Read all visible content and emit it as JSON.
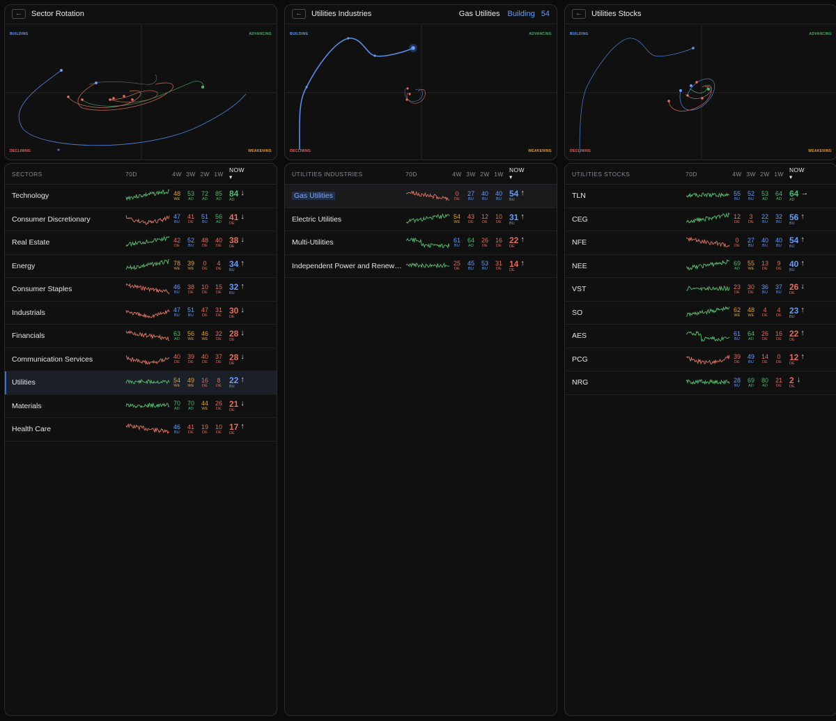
{
  "charts": [
    {
      "title": "Sector Rotation",
      "back": "←",
      "quadrants": {
        "bu": "BUILDING",
        "ad": "ADVANCING",
        "de": "DECLINING",
        "we": "WEAKENING"
      }
    },
    {
      "title": "Utilities Industries",
      "back": "←",
      "selected_name": "Gas Utilities",
      "selected_state": "Building",
      "selected_value": "54",
      "quadrants": {
        "bu": "BUILDING",
        "ad": "ADVANCING",
        "de": "DECLINING",
        "we": "WEAKENING"
      }
    },
    {
      "title": "Utilities Stocks",
      "back": "←",
      "quadrants": {
        "bu": "BUILDING",
        "ad": "ADVANCING",
        "de": "DECLINING",
        "we": "WEAKENING"
      }
    }
  ],
  "tables": [
    {
      "header": {
        "name": "SECTORS",
        "spark": "70D",
        "w4": "4W",
        "w3": "3W",
        "w2": "2W",
        "w1": "1W",
        "now": "NOW ▾"
      },
      "selected": 8,
      "rows": [
        {
          "name": "Technology",
          "w": [
            [
              48,
              "WE"
            ],
            [
              53,
              "AD"
            ],
            [
              72,
              "AD"
            ],
            [
              85,
              "AD"
            ]
          ],
          "now": [
            84,
            "AD"
          ],
          "arrow": "↓",
          "trend": "up"
        },
        {
          "name": "Consumer Discretionary",
          "w": [
            [
              47,
              "BU"
            ],
            [
              41,
              "DE"
            ],
            [
              51,
              "BU"
            ],
            [
              56,
              "AD"
            ]
          ],
          "now": [
            41,
            "DE"
          ],
          "arrow": "↓",
          "trend": "dip"
        },
        {
          "name": "Real Estate",
          "w": [
            [
              42,
              "DE"
            ],
            [
              52,
              "BU"
            ],
            [
              48,
              "DE"
            ],
            [
              40,
              "DE"
            ]
          ],
          "now": [
            38,
            "DE"
          ],
          "arrow": "↓",
          "trend": "up"
        },
        {
          "name": "Energy",
          "w": [
            [
              78,
              "WE"
            ],
            [
              39,
              "WE"
            ],
            [
              0,
              "DE"
            ],
            [
              4,
              "DE"
            ]
          ],
          "now": [
            34,
            "BU"
          ],
          "arrow": "↑",
          "trend": "up"
        },
        {
          "name": "Consumer Staples",
          "w": [
            [
              46,
              "BU"
            ],
            [
              38,
              "DE"
            ],
            [
              10,
              "DE"
            ],
            [
              15,
              "DE"
            ]
          ],
          "now": [
            32,
            "BU"
          ],
          "arrow": "↑",
          "trend": "down"
        },
        {
          "name": "Industrials",
          "w": [
            [
              47,
              "BU"
            ],
            [
              51,
              "BU"
            ],
            [
              47,
              "DE"
            ],
            [
              31,
              "DE"
            ]
          ],
          "now": [
            30,
            "DE"
          ],
          "arrow": "↓",
          "trend": "dip"
        },
        {
          "name": "Financials",
          "w": [
            [
              63,
              "AD"
            ],
            [
              56,
              "WE"
            ],
            [
              46,
              "WE"
            ],
            [
              32,
              "DE"
            ]
          ],
          "now": [
            28,
            "DE"
          ],
          "arrow": "↓",
          "trend": "down"
        },
        {
          "name": "Communication Services",
          "w": [
            [
              40,
              "DE"
            ],
            [
              39,
              "DE"
            ],
            [
              40,
              "DE"
            ],
            [
              37,
              "DE"
            ]
          ],
          "now": [
            28,
            "DE"
          ],
          "arrow": "↓",
          "trend": "dip"
        },
        {
          "name": "Utilities",
          "w": [
            [
              54,
              "WE"
            ],
            [
              49,
              "WE"
            ],
            [
              16,
              "DE"
            ],
            [
              8,
              "DE"
            ]
          ],
          "now": [
            22,
            "BU"
          ],
          "arrow": "↑",
          "trend": "flat"
        },
        {
          "name": "Materials",
          "w": [
            [
              70,
              "AD"
            ],
            [
              70,
              "AD"
            ],
            [
              44,
              "WE"
            ],
            [
              26,
              "DE"
            ]
          ],
          "now": [
            21,
            "DE"
          ],
          "arrow": "↓",
          "trend": "flat"
        },
        {
          "name": "Health Care",
          "w": [
            [
              46,
              "BU"
            ],
            [
              41,
              "DE"
            ],
            [
              19,
              "DE"
            ],
            [
              10,
              "DE"
            ]
          ],
          "now": [
            17,
            "DE"
          ],
          "arrow": "↑",
          "trend": "down"
        }
      ]
    },
    {
      "header": {
        "name": "UTILITIES INDUSTRIES",
        "spark": "70D",
        "w4": "4W",
        "w3": "3W",
        "w2": "2W",
        "w1": "1W",
        "now": "NOW ▾"
      },
      "highlight": 0,
      "rows": [
        {
          "name": "Gas Utilities",
          "w": [
            [
              0,
              "DE"
            ],
            [
              27,
              "BU"
            ],
            [
              40,
              "BU"
            ],
            [
              40,
              "BU"
            ]
          ],
          "now": [
            54,
            "BU"
          ],
          "arrow": "↑",
          "trend": "down"
        },
        {
          "name": "Electric Utilities",
          "w": [
            [
              54,
              "WE"
            ],
            [
              43,
              "DE"
            ],
            [
              12,
              "DE"
            ],
            [
              10,
              "DE"
            ]
          ],
          "now": [
            31,
            "BU"
          ],
          "arrow": "↑",
          "trend": "up"
        },
        {
          "name": "Multi-Utilities",
          "w": [
            [
              61,
              "BU"
            ],
            [
              64,
              "AD"
            ],
            [
              26,
              "DE"
            ],
            [
              16,
              "DE"
            ]
          ],
          "now": [
            22,
            "DE"
          ],
          "arrow": "↑",
          "trend": "step"
        },
        {
          "name": "Independent Power and Renewable Electricity Producers",
          "w": [
            [
              25,
              "DE"
            ],
            [
              45,
              "BU"
            ],
            [
              53,
              "BU"
            ],
            [
              31,
              "DE"
            ]
          ],
          "now": [
            14,
            "DE"
          ],
          "arrow": "↑",
          "trend": "flat"
        }
      ]
    },
    {
      "header": {
        "name": "UTILITIES STOCKS",
        "spark": "70D",
        "w4": "4W",
        "w3": "3W",
        "w2": "2W",
        "w1": "1W",
        "now": "NOW ▾"
      },
      "rows": [
        {
          "name": "TLN",
          "w": [
            [
              55,
              "BU"
            ],
            [
              52,
              "BU"
            ],
            [
              53,
              "AD"
            ],
            [
              64,
              "AD"
            ]
          ],
          "now": [
            64,
            "AD"
          ],
          "arrow": "→",
          "trend": "flat"
        },
        {
          "name": "CEG",
          "w": [
            [
              12,
              "DE"
            ],
            [
              3,
              "DE"
            ],
            [
              22,
              "BU"
            ],
            [
              32,
              "BU"
            ]
          ],
          "now": [
            56,
            "BU"
          ],
          "arrow": "↑",
          "trend": "up"
        },
        {
          "name": "NFE",
          "w": [
            [
              0,
              "DE"
            ],
            [
              27,
              "BU"
            ],
            [
              40,
              "BU"
            ],
            [
              40,
              "BU"
            ]
          ],
          "now": [
            54,
            "BU"
          ],
          "arrow": "↑",
          "trend": "down"
        },
        {
          "name": "NEE",
          "w": [
            [
              69,
              "AD"
            ],
            [
              55,
              "WE"
            ],
            [
              13,
              "DE"
            ],
            [
              9,
              "DE"
            ]
          ],
          "now": [
            40,
            "BU"
          ],
          "arrow": "↑",
          "trend": "up"
        },
        {
          "name": "VST",
          "w": [
            [
              23,
              "DE"
            ],
            [
              30,
              "DE"
            ],
            [
              36,
              "BU"
            ],
            [
              37,
              "BU"
            ]
          ],
          "now": [
            26,
            "DE"
          ],
          "arrow": "↓",
          "trend": "flat"
        },
        {
          "name": "SO",
          "w": [
            [
              62,
              "WE"
            ],
            [
              48,
              "WE"
            ],
            [
              4,
              "DE"
            ],
            [
              4,
              "DE"
            ]
          ],
          "now": [
            23,
            "BU"
          ],
          "arrow": "↑",
          "trend": "up"
        },
        {
          "name": "AES",
          "w": [
            [
              61,
              "BU"
            ],
            [
              64,
              "AD"
            ],
            [
              26,
              "DE"
            ],
            [
              16,
              "DE"
            ]
          ],
          "now": [
            22,
            "DE"
          ],
          "arrow": "↑",
          "trend": "step"
        },
        {
          "name": "PCG",
          "w": [
            [
              39,
              "DE"
            ],
            [
              49,
              "BU"
            ],
            [
              14,
              "DE"
            ],
            [
              0,
              "DE"
            ]
          ],
          "now": [
            12,
            "DE"
          ],
          "arrow": "↑",
          "trend": "dip"
        },
        {
          "name": "NRG",
          "w": [
            [
              28,
              "BU"
            ],
            [
              69,
              "AD"
            ],
            [
              80,
              "AD"
            ],
            [
              21,
              "DE"
            ]
          ],
          "now": [
            2,
            "DE"
          ],
          "arrow": "↓",
          "trend": "flat"
        }
      ]
    }
  ],
  "colors": {
    "BU": "#6a9cf5",
    "AD": "#52b870",
    "WE": "#e0a040",
    "DE": "#e07060"
  }
}
